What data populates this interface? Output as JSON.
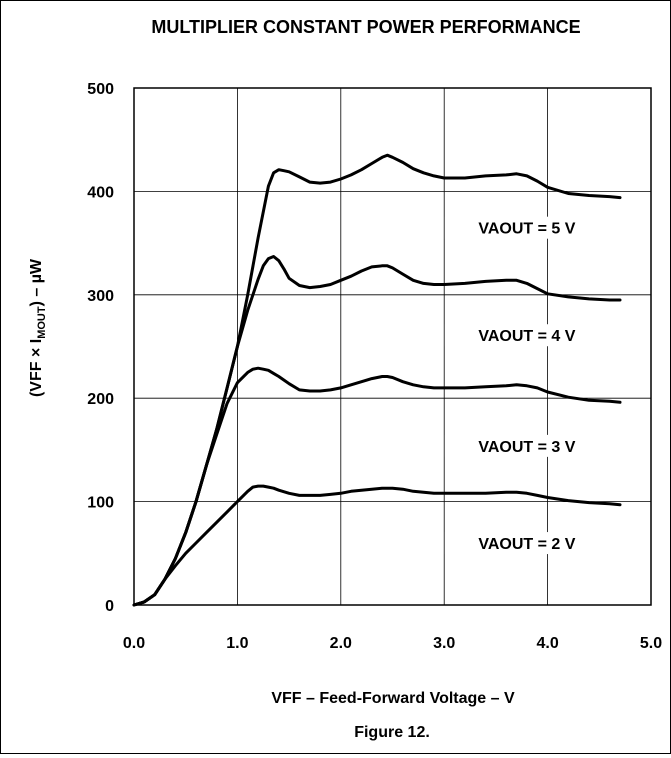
{
  "chart_data": {
    "type": "line",
    "title": "MULTIPLIER CONSTANT POWER PERFORMANCE",
    "xlabel": "VFF – Feed-Forward Voltage – V",
    "ylabel": {
      "pre": "(VFF × I",
      "sub": "MOUT",
      "post": ") – µW"
    },
    "caption": "Figure 12.",
    "xlim": [
      0,
      5
    ],
    "ylim": [
      0,
      500
    ],
    "x_ticks": [
      {
        "v": 0,
        "label": "0.0"
      },
      {
        "v": 1,
        "label": "1.0"
      },
      {
        "v": 2,
        "label": "2.0"
      },
      {
        "v": 3,
        "label": "3.0"
      },
      {
        "v": 4,
        "label": "4.0"
      },
      {
        "v": 5,
        "label": "5.0"
      }
    ],
    "y_ticks": [
      {
        "v": 0,
        "label": "0"
      },
      {
        "v": 100,
        "label": "100"
      },
      {
        "v": 200,
        "label": "200"
      },
      {
        "v": 300,
        "label": "300"
      },
      {
        "v": 400,
        "label": "400"
      },
      {
        "v": 500,
        "label": "500"
      }
    ],
    "grid": true,
    "series": [
      {
        "name": "VAOUT = 5 V",
        "label_at": [
          3.8,
          362
        ],
        "x": [
          0,
          0.1,
          0.2,
          0.3,
          0.4,
          0.5,
          0.6,
          0.7,
          0.8,
          0.9,
          1.0,
          1.1,
          1.2,
          1.3,
          1.35,
          1.4,
          1.45,
          1.5,
          1.6,
          1.7,
          1.8,
          1.9,
          2.0,
          2.1,
          2.2,
          2.3,
          2.4,
          2.45,
          2.5,
          2.6,
          2.7,
          2.8,
          2.9,
          3.0,
          3.2,
          3.4,
          3.6,
          3.7,
          3.8,
          3.9,
          4.0,
          4.2,
          4.4,
          4.6,
          4.7
        ],
        "y": [
          0,
          3,
          10,
          25,
          45,
          70,
          100,
          135,
          170,
          210,
          250,
          300,
          355,
          405,
          418,
          421,
          420,
          419,
          414,
          409,
          408,
          409,
          412,
          416,
          421,
          427,
          433,
          435,
          433,
          428,
          422,
          418,
          415,
          413,
          413,
          415,
          416,
          417,
          415,
          410,
          404,
          398,
          396,
          395,
          394
        ]
      },
      {
        "name": "VAOUT = 4 V",
        "label_at": [
          3.8,
          258
        ],
        "x": [
          0,
          0.1,
          0.2,
          0.3,
          0.4,
          0.5,
          0.6,
          0.7,
          0.8,
          0.9,
          1.0,
          1.1,
          1.2,
          1.25,
          1.3,
          1.35,
          1.4,
          1.45,
          1.5,
          1.6,
          1.7,
          1.8,
          1.9,
          2.0,
          2.1,
          2.2,
          2.3,
          2.4,
          2.45,
          2.5,
          2.6,
          2.7,
          2.8,
          2.9,
          3.0,
          3.2,
          3.4,
          3.6,
          3.7,
          3.8,
          3.9,
          4.0,
          4.2,
          4.4,
          4.6,
          4.7
        ],
        "y": [
          0,
          3,
          10,
          25,
          45,
          70,
          100,
          135,
          170,
          210,
          250,
          285,
          315,
          328,
          335,
          337,
          333,
          325,
          316,
          309,
          307,
          308,
          310,
          314,
          318,
          323,
          327,
          328,
          328,
          326,
          320,
          314,
          311,
          310,
          310,
          311,
          313,
          314,
          314,
          311,
          306,
          301,
          298,
          296,
          295,
          295
        ]
      },
      {
        "name": "VAOUT = 3 V",
        "label_at": [
          3.8,
          151
        ],
        "x": [
          0,
          0.1,
          0.2,
          0.3,
          0.4,
          0.5,
          0.6,
          0.7,
          0.8,
          0.9,
          1.0,
          1.1,
          1.15,
          1.2,
          1.25,
          1.3,
          1.35,
          1.4,
          1.5,
          1.6,
          1.7,
          1.8,
          1.9,
          2.0,
          2.1,
          2.2,
          2.3,
          2.4,
          2.45,
          2.5,
          2.6,
          2.7,
          2.8,
          2.9,
          3.0,
          3.2,
          3.4,
          3.6,
          3.7,
          3.8,
          3.9,
          4.0,
          4.2,
          4.4,
          4.6,
          4.7
        ],
        "y": [
          0,
          3,
          10,
          25,
          45,
          70,
          100,
          135,
          165,
          195,
          215,
          225,
          228,
          229,
          228,
          227,
          224,
          221,
          214,
          208,
          207,
          207,
          208,
          210,
          213,
          216,
          219,
          221,
          221,
          220,
          216,
          213,
          211,
          210,
          210,
          210,
          211,
          212,
          213,
          212,
          210,
          206,
          201,
          198,
          197,
          196
        ]
      },
      {
        "name": "VAOUT = 2 V",
        "label_at": [
          3.8,
          57
        ],
        "x": [
          0,
          0.1,
          0.2,
          0.3,
          0.4,
          0.5,
          0.6,
          0.7,
          0.8,
          0.9,
          1.0,
          1.1,
          1.15,
          1.2,
          1.25,
          1.3,
          1.35,
          1.4,
          1.5,
          1.6,
          1.7,
          1.8,
          1.9,
          2.0,
          2.1,
          2.2,
          2.3,
          2.4,
          2.45,
          2.5,
          2.6,
          2.7,
          2.8,
          2.9,
          3.0,
          3.2,
          3.4,
          3.6,
          3.7,
          3.8,
          3.9,
          4.0,
          4.2,
          4.4,
          4.6,
          4.7
        ],
        "y": [
          0,
          3,
          10,
          25,
          38,
          50,
          60,
          70,
          80,
          90,
          100,
          110,
          114,
          115,
          115,
          114,
          113,
          111,
          108,
          106,
          106,
          106,
          107,
          108,
          110,
          111,
          112,
          113,
          113,
          113,
          112,
          110,
          109,
          108,
          108,
          108,
          108,
          109,
          109,
          108,
          106,
          104,
          101,
          99,
          98,
          97
        ]
      }
    ]
  }
}
